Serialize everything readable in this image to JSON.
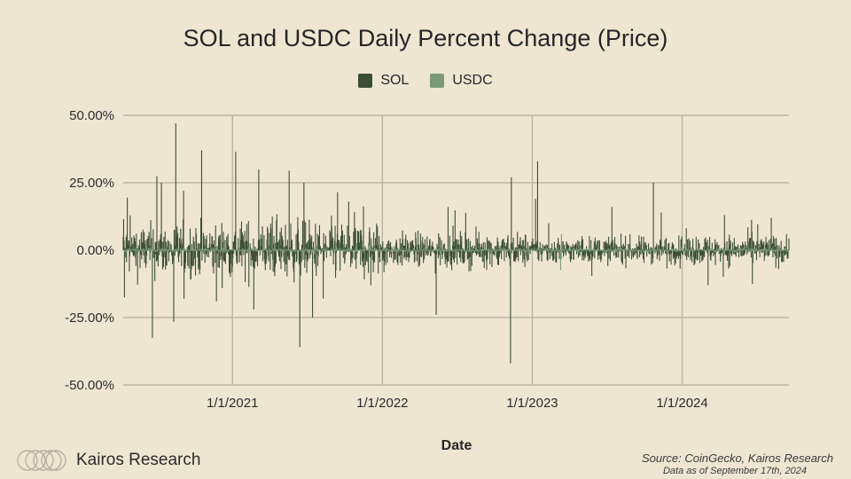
{
  "chart_data": {
    "type": "bar",
    "title": "SOL and USDC Daily Percent Change (Price)",
    "xlabel": "Date",
    "ylabel": "",
    "ylim": [
      -50,
      50
    ],
    "yticks": [
      50,
      25,
      0,
      -25,
      -50
    ],
    "ytick_labels": [
      "50.00%",
      "25.00%",
      "0.00%",
      "-25.00%",
      "-50.00%"
    ],
    "x_range": [
      "2020-04-10",
      "2024-09-17"
    ],
    "xticks": [
      {
        "date": "2021-01-01",
        "label": "1/1/2021"
      },
      {
        "date": "2022-01-01",
        "label": "1/1/2022"
      },
      {
        "date": "2023-01-01",
        "label": "1/1/2023"
      },
      {
        "date": "2024-01-01",
        "label": "1/1/2024"
      }
    ],
    "grid": true,
    "legend_position": "top-center",
    "series": [
      {
        "name": "SOL",
        "color": "#3b4f35",
        "baseline_volatility": [
          {
            "from": "2020-04-10",
            "to": "2020-12-31",
            "pct": 7
          },
          {
            "from": "2021-01-01",
            "to": "2021-12-31",
            "pct": 7.5
          },
          {
            "from": "2022-01-01",
            "to": "2022-12-31",
            "pct": 4.5
          },
          {
            "from": "2023-01-01",
            "to": "2023-12-31",
            "pct": 3.5
          },
          {
            "from": "2024-01-01",
            "to": "2024-09-17",
            "pct": 4
          }
        ],
        "notable_points": [
          {
            "date": "2020-04-11",
            "value": 11.5
          },
          {
            "date": "2020-04-13",
            "value": -17.5
          },
          {
            "date": "2020-04-20",
            "value": 19.5
          },
          {
            "date": "2020-06-20",
            "value": -32.5
          },
          {
            "date": "2020-07-01",
            "value": 27.5
          },
          {
            "date": "2020-07-12",
            "value": 25
          },
          {
            "date": "2020-08-11",
            "value": -26.5
          },
          {
            "date": "2020-08-16",
            "value": 47
          },
          {
            "date": "2020-09-05",
            "value": -18
          },
          {
            "date": "2020-10-18",
            "value": 37
          },
          {
            "date": "2020-11-23",
            "value": -19
          },
          {
            "date": "2021-01-09",
            "value": 36.5
          },
          {
            "date": "2021-02-22",
            "value": -22
          },
          {
            "date": "2021-03-06",
            "value": 30
          },
          {
            "date": "2021-05-19",
            "value": 29.5
          },
          {
            "date": "2021-06-14",
            "value": -36
          },
          {
            "date": "2021-06-24",
            "value": 25
          },
          {
            "date": "2021-07-15",
            "value": -25
          },
          {
            "date": "2021-08-10",
            "value": -18
          },
          {
            "date": "2021-09-14",
            "value": 21.5
          },
          {
            "date": "2021-10-11",
            "value": 18
          },
          {
            "date": "2021-12-04",
            "value": -13
          },
          {
            "date": "2022-05-12",
            "value": -24
          },
          {
            "date": "2022-06-10",
            "value": 16
          },
          {
            "date": "2022-11-09",
            "value": -42
          },
          {
            "date": "2022-11-11",
            "value": 27
          },
          {
            "date": "2023-01-09",
            "value": 19
          },
          {
            "date": "2023-01-14",
            "value": 33
          },
          {
            "date": "2023-02-10",
            "value": 10
          },
          {
            "date": "2023-07-14",
            "value": 16
          },
          {
            "date": "2023-10-23",
            "value": 25
          },
          {
            "date": "2023-11-11",
            "value": 14
          },
          {
            "date": "2024-03-04",
            "value": -13
          },
          {
            "date": "2024-04-13",
            "value": 13
          },
          {
            "date": "2024-06-20",
            "value": -12.5
          },
          {
            "date": "2024-08-05",
            "value": 12
          }
        ]
      },
      {
        "name": "USDC",
        "color": "#7a9a78",
        "baseline_volatility": [
          {
            "from": "2020-04-10",
            "to": "2024-09-17",
            "pct": 0.6
          }
        ],
        "notable_points": [
          {
            "date": "2023-03-11",
            "value": -7.5
          },
          {
            "date": "2023-03-13",
            "value": 6
          }
        ]
      }
    ]
  },
  "brand": {
    "name": "Kairos Research",
    "logo": "kairos-rings-logo"
  },
  "footer": {
    "source": "Source: CoinGecko, Kairos Research",
    "as_of": "Data as of September 17th, 2024"
  }
}
